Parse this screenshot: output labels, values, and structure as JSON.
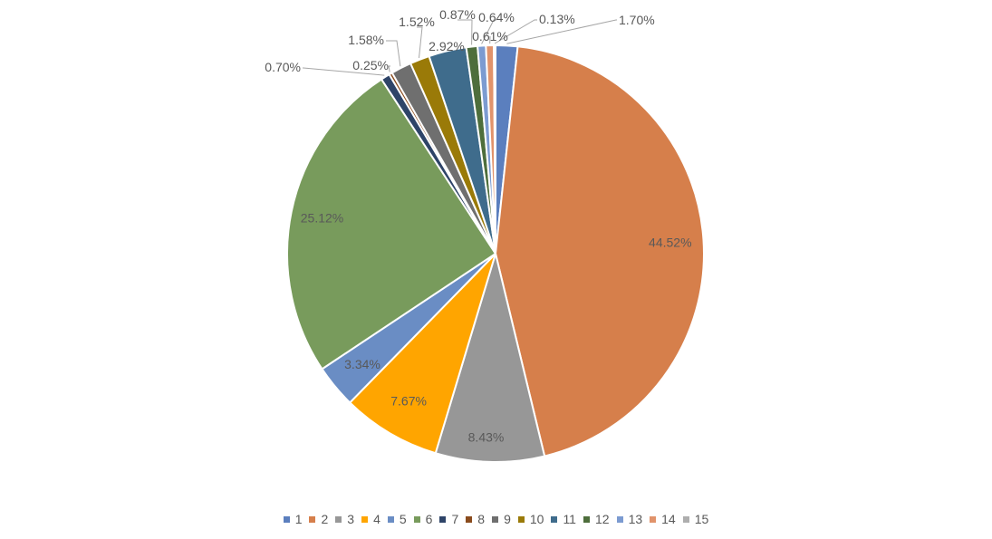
{
  "chart_data": {
    "type": "pie",
    "title": "",
    "categories": [
      "1",
      "2",
      "3",
      "4",
      "5",
      "6",
      "7",
      "8",
      "9",
      "10",
      "11",
      "12",
      "13",
      "14",
      "15"
    ],
    "values": [
      1.7,
      44.52,
      8.43,
      7.67,
      3.34,
      25.12,
      0.7,
      0.25,
      1.58,
      1.52,
      2.92,
      0.87,
      0.64,
      0.61,
      0.13
    ],
    "value_labels": [
      "1.70%",
      "44.52%",
      "8.43%",
      "7.67%",
      "3.34%",
      "25.12%",
      "0.70%",
      "0.25%",
      "1.58%",
      "1.52%",
      "2.92%",
      "0.87%",
      "0.64%",
      "0.61%",
      "0.13%"
    ],
    "colors": [
      "#5B7FBE",
      "#D67F4B",
      "#979797",
      "#FFA500",
      "#6A8DC4",
      "#789B5C",
      "#2E4468",
      "#8A4B1D",
      "#6F6F6F",
      "#9A7A08",
      "#3F6C8C",
      "#4E6E3C",
      "#7C9BD1",
      "#E1936B",
      "#AEAEAE"
    ],
    "legend_position": "bottom",
    "start_angle": "12 o'clock",
    "direction": "clockwise"
  }
}
